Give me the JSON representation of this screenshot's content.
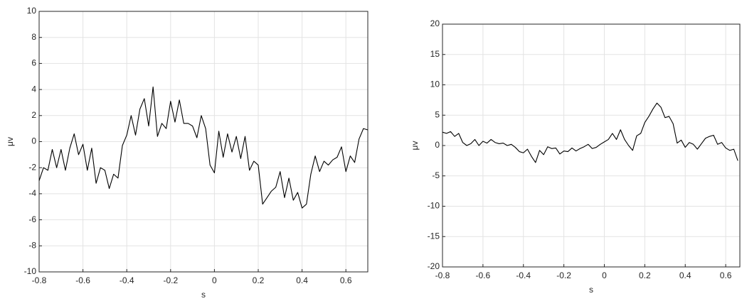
{
  "chart_data": [
    {
      "type": "line",
      "xlabel": "s",
      "ylabel": "μv",
      "xlim": [
        -0.8,
        0.7
      ],
      "ylim": [
        -10,
        10
      ],
      "xticks": [
        -0.8,
        -0.6,
        -0.4,
        -0.2,
        0,
        0.2,
        0.4,
        0.6
      ],
      "yticks": [
        -10,
        -8,
        -6,
        -4,
        -2,
        0,
        2,
        4,
        6,
        8,
        10
      ],
      "grid": true,
      "x": [
        -0.8,
        -0.78,
        -0.76,
        -0.74,
        -0.72,
        -0.7,
        -0.68,
        -0.66,
        -0.64,
        -0.62,
        -0.6,
        -0.58,
        -0.56,
        -0.54,
        -0.52,
        -0.5,
        -0.48,
        -0.46,
        -0.44,
        -0.42,
        -0.4,
        -0.38,
        -0.36,
        -0.34,
        -0.32,
        -0.3,
        -0.28,
        -0.26,
        -0.24,
        -0.22,
        -0.2,
        -0.18,
        -0.16,
        -0.14,
        -0.12,
        -0.1,
        -0.08,
        -0.06,
        -0.04,
        -0.02,
        0,
        0.02,
        0.04,
        0.06,
        0.08,
        0.1,
        0.12,
        0.14,
        0.16,
        0.18,
        0.2,
        0.22,
        0.24,
        0.26,
        0.28,
        0.3,
        0.32,
        0.34,
        0.36,
        0.38,
        0.4,
        0.42,
        0.44,
        0.46,
        0.48,
        0.5,
        0.52,
        0.54,
        0.56,
        0.58,
        0.6,
        0.62,
        0.64,
        0.66,
        0.68,
        0.7
      ],
      "series": [
        {
          "color": "#000000",
          "values": [
            -3,
            -2,
            -2.2,
            -0.6,
            -2,
            -0.6,
            -2.2,
            -0.5,
            0.6,
            -1,
            -0.2,
            -2.2,
            -0.5,
            -3.2,
            -2,
            -2.2,
            -3.6,
            -2.5,
            -2.8,
            -0.3,
            0.5,
            2,
            0.5,
            2.5,
            3.3,
            1.2,
            4.2,
            0.4,
            1.4,
            1,
            3.1,
            1.5,
            3.2,
            1.4,
            1.4,
            1.2,
            0.3,
            2,
            1,
            -1.8,
            -2.4,
            0.8,
            -1.2,
            0.6,
            -0.8,
            0.4,
            -1.3,
            0.4,
            -2.2,
            -1.5,
            -1.8,
            -4.8,
            -4.3,
            -3.8,
            -3.5,
            -2.3,
            -4.3,
            -2.8,
            -4.5,
            -3.9,
            -5.1,
            -4.8,
            -2.5,
            -1.1,
            -2.3,
            -1.5,
            -1.8,
            -1.4,
            -1.2,
            -0.4,
            -2.3,
            -1.1,
            -1.6,
            0.2,
            1,
            0.9
          ]
        }
      ]
    },
    {
      "type": "line",
      "xlabel": "s",
      "ylabel": "μv",
      "xlim": [
        -0.8,
        0.67
      ],
      "ylim": [
        -20,
        20
      ],
      "xticks": [
        -0.8,
        -0.6,
        -0.4,
        -0.2,
        0,
        0.2,
        0.4,
        0.6
      ],
      "yticks": [
        -20,
        -15,
        -10,
        -5,
        0,
        5,
        10,
        15,
        20
      ],
      "grid": true,
      "x": [
        -0.8,
        -0.78,
        -0.76,
        -0.74,
        -0.72,
        -0.7,
        -0.68,
        -0.66,
        -0.64,
        -0.62,
        -0.6,
        -0.58,
        -0.56,
        -0.54,
        -0.52,
        -0.5,
        -0.48,
        -0.46,
        -0.44,
        -0.42,
        -0.4,
        -0.38,
        -0.36,
        -0.34,
        -0.32,
        -0.3,
        -0.28,
        -0.26,
        -0.24,
        -0.22,
        -0.2,
        -0.18,
        -0.16,
        -0.14,
        -0.12,
        -0.1,
        -0.08,
        -0.06,
        -0.04,
        -0.02,
        0,
        0.02,
        0.04,
        0.06,
        0.08,
        0.1,
        0.12,
        0.14,
        0.16,
        0.18,
        0.2,
        0.22,
        0.24,
        0.26,
        0.28,
        0.3,
        0.32,
        0.34,
        0.36,
        0.38,
        0.4,
        0.42,
        0.44,
        0.46,
        0.48,
        0.5,
        0.52,
        0.54,
        0.56,
        0.58,
        0.6,
        0.62,
        0.64,
        0.66
      ],
      "series": [
        {
          "color": "#000000",
          "values": [
            2.2,
            2,
            2.3,
            1.5,
            2,
            0.5,
            0,
            0.3,
            1,
            0,
            0.7,
            0.4,
            1,
            0.5,
            0.3,
            0.4,
            0,
            0.2,
            -0.3,
            -1,
            -1.2,
            -0.6,
            -1.8,
            -2.8,
            -0.8,
            -1.5,
            -0.2,
            -0.5,
            -0.4,
            -1.4,
            -0.9,
            -1,
            -0.4,
            -0.9,
            -0.5,
            -0.2,
            0.2,
            -0.5,
            -0.3,
            0.2,
            0.6,
            1,
            2,
            1,
            2.6,
            1,
            0,
            -0.8,
            1.6,
            2,
            3.8,
            4.8,
            6,
            7,
            6.3,
            4.6,
            4.8,
            3.6,
            0.4,
            0.9,
            -0.3,
            0.5,
            0.2,
            -0.6,
            0.3,
            1.2,
            1.5,
            1.7,
            0.2,
            0.5,
            -0.4,
            -0.8,
            -0.6,
            -2.5
          ]
        }
      ]
    }
  ]
}
